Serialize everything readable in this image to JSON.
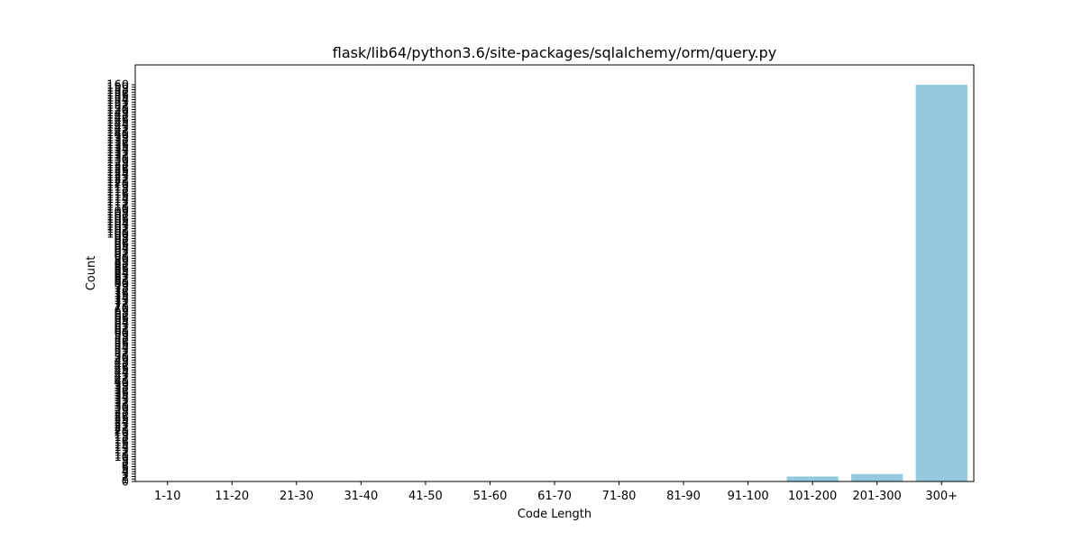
{
  "chart_data": {
    "type": "bar",
    "title": "flask/lib64/python3.6/site-packages/sqlalchemy/orm/query.py",
    "xlabel": "Code Length",
    "ylabel": "Count",
    "categories": [
      "1-10",
      "11-20",
      "21-30",
      "31-40",
      "41-50",
      "51-60",
      "61-70",
      "71-80",
      "81-90",
      "91-100",
      "101-200",
      "201-300",
      "300+"
    ],
    "values": [
      0,
      0,
      0,
      0,
      0,
      0,
      0,
      0,
      0,
      0,
      2,
      3,
      160
    ],
    "ylim": [
      0,
      168
    ],
    "yticks_start": 0,
    "yticks_end": 160,
    "yticks_step": 1,
    "grid": false,
    "bar_color": "#92c9de"
  }
}
